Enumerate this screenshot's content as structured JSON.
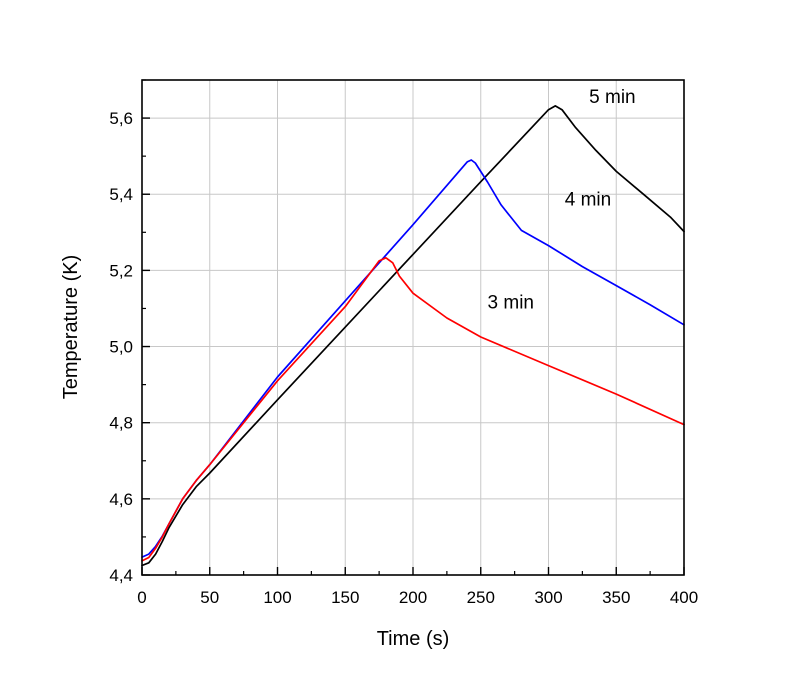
{
  "chart_data": {
    "type": "line",
    "title": "",
    "xlabel": "Time (s)",
    "ylabel": "Temperature (K)",
    "xlim": [
      0,
      400
    ],
    "ylim": [
      4.4,
      5.7
    ],
    "grid": true,
    "x_ticks": [
      0,
      50,
      100,
      150,
      200,
      250,
      300,
      350,
      400
    ],
    "x_tick_labels": [
      "0",
      "50",
      "100",
      "150",
      "200",
      "250",
      "300",
      "350",
      "400"
    ],
    "y_ticks": [
      4.4,
      4.6,
      4.8,
      5.0,
      5.2,
      5.4,
      5.6
    ],
    "y_tick_labels": [
      "4,4",
      "4,6",
      "4,8",
      "5,0",
      "5,2",
      "5,4",
      "5,6"
    ],
    "series": [
      {
        "name": "5 min",
        "color": "#000000",
        "label_at": [
          330,
          5.64
        ],
        "points": [
          [
            0,
            4.425
          ],
          [
            5,
            4.432
          ],
          [
            10,
            4.455
          ],
          [
            15,
            4.488
          ],
          [
            20,
            4.525
          ],
          [
            30,
            4.585
          ],
          [
            40,
            4.632
          ],
          [
            50,
            4.668
          ],
          [
            100,
            4.86
          ],
          [
            150,
            5.051
          ],
          [
            200,
            5.242
          ],
          [
            250,
            5.433
          ],
          [
            300,
            5.622
          ],
          [
            305,
            5.632
          ],
          [
            310,
            5.622
          ],
          [
            320,
            5.575
          ],
          [
            335,
            5.515
          ],
          [
            350,
            5.46
          ],
          [
            370,
            5.4
          ],
          [
            390,
            5.34
          ],
          [
            400,
            5.302
          ]
        ]
      },
      {
        "name": "4 min",
        "color": "#0000ff",
        "label_at": [
          312,
          5.37
        ],
        "points": [
          [
            0,
            4.447
          ],
          [
            5,
            4.455
          ],
          [
            10,
            4.475
          ],
          [
            15,
            4.502
          ],
          [
            20,
            4.535
          ],
          [
            30,
            4.6
          ],
          [
            40,
            4.648
          ],
          [
            50,
            4.69
          ],
          [
            100,
            4.92
          ],
          [
            150,
            5.12
          ],
          [
            200,
            5.32
          ],
          [
            240,
            5.485
          ],
          [
            243,
            5.49
          ],
          [
            246,
            5.482
          ],
          [
            255,
            5.432
          ],
          [
            265,
            5.372
          ],
          [
            280,
            5.305
          ],
          [
            300,
            5.265
          ],
          [
            325,
            5.21
          ],
          [
            350,
            5.16
          ],
          [
            375,
            5.11
          ],
          [
            400,
            5.057
          ]
        ]
      },
      {
        "name": "3 min",
        "color": "#ff0000",
        "label_at": [
          255,
          5.1
        ],
        "points": [
          [
            0,
            4.437
          ],
          [
            5,
            4.446
          ],
          [
            10,
            4.47
          ],
          [
            15,
            4.5
          ],
          [
            20,
            4.535
          ],
          [
            30,
            4.6
          ],
          [
            40,
            4.648
          ],
          [
            50,
            4.69
          ],
          [
            100,
            4.91
          ],
          [
            150,
            5.105
          ],
          [
            175,
            5.225
          ],
          [
            180,
            5.233
          ],
          [
            185,
            5.22
          ],
          [
            190,
            5.185
          ],
          [
            200,
            5.14
          ],
          [
            225,
            5.075
          ],
          [
            250,
            5.025
          ],
          [
            300,
            4.95
          ],
          [
            350,
            4.875
          ],
          [
            400,
            4.795
          ]
        ]
      }
    ]
  }
}
